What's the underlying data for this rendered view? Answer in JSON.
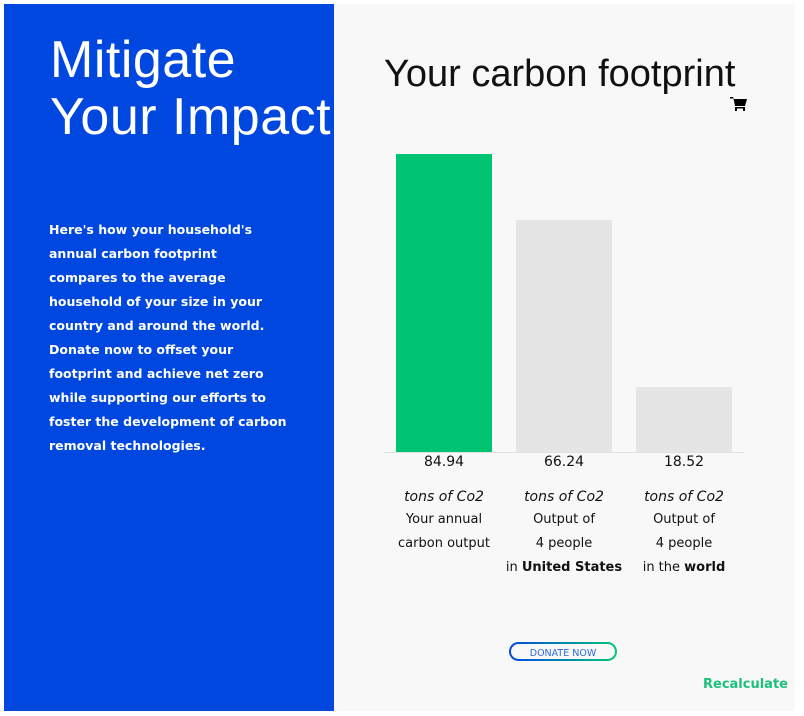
{
  "left_panel": {
    "title": "Mitigate Your Impact",
    "description": "Here's how your household's annual carbon footprint compares to the average household of your size in your country and around the world. Donate now to offset your footprint and achieve net zero while supporting our efforts to foster the development of carbon removal technologies.",
    "background_color": "#0047e0"
  },
  "main": {
    "title": "Your carbon footprint",
    "cart_icon": "shopping-cart-icon",
    "donate_label": "DONATE NOW",
    "recalculate_label": "Recalculate"
  },
  "chart_data": {
    "type": "bar",
    "values": [
      84.94,
      66.24,
      18.52
    ],
    "value_labels": [
      "84.94",
      "66.24",
      "18.52"
    ],
    "colors": [
      "#00c474",
      "#e5e5e5",
      "#e5e5e5"
    ],
    "unit": "tons of Co2",
    "categories": [
      {
        "line1": "Your annual",
        "line2": "carbon output",
        "prefix": "",
        "bold": ""
      },
      {
        "line1": "Output of",
        "line2": "4 people",
        "prefix": "in ",
        "bold": "United States"
      },
      {
        "line1": "Output of",
        "line2": "4 people",
        "prefix": "in the ",
        "bold": "world"
      }
    ],
    "ylim": [
      0,
      84.94
    ]
  }
}
